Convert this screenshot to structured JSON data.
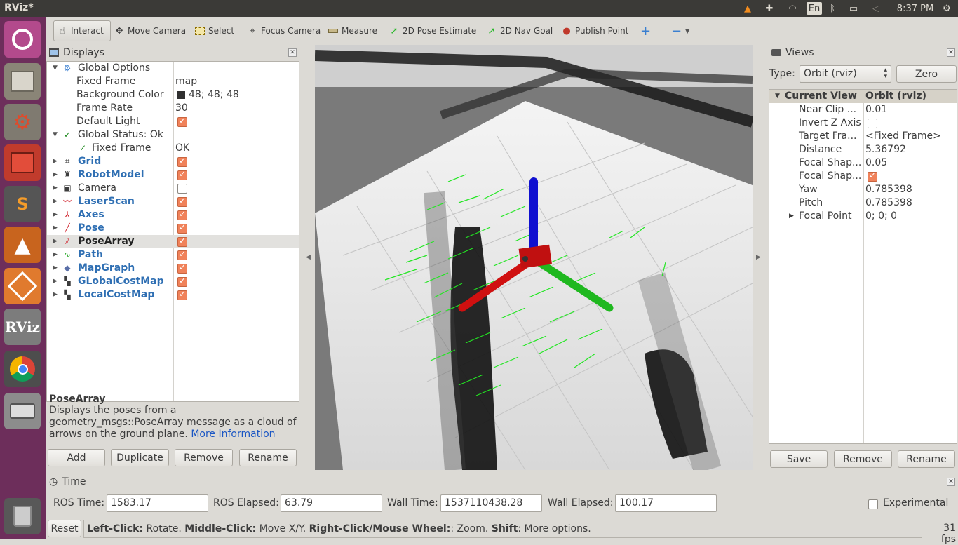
{
  "topbar": {
    "title": "RViz*",
    "keyboard": "En",
    "time": "8:37 PM"
  },
  "toolbar": {
    "tools": [
      {
        "label": "Interact",
        "icon": "hand-icon"
      },
      {
        "label": "Move Camera",
        "icon": "move-icon"
      },
      {
        "label": "Select",
        "icon": "select-icon"
      },
      {
        "label": "Focus Camera",
        "icon": "focus-icon"
      },
      {
        "label": "Measure",
        "icon": "ruler-icon"
      },
      {
        "label": "2D Pose Estimate",
        "icon": "green-arrow-icon"
      },
      {
        "label": "2D Nav Goal",
        "icon": "green-arrow-icon"
      },
      {
        "label": "Publish Point",
        "icon": "pin-icon"
      }
    ],
    "active_tool": "Interact"
  },
  "displays": {
    "header": "Displays",
    "rows": [
      {
        "label": "Global Options",
        "value": ""
      },
      {
        "label": "Fixed Frame",
        "value": "map"
      },
      {
        "label": "Background Color",
        "value": "48; 48; 48"
      },
      {
        "label": "Frame Rate",
        "value": "30"
      },
      {
        "label": "Default Light",
        "value": ""
      },
      {
        "label": "Global Status: Ok",
        "value": ""
      },
      {
        "label": "Fixed Frame",
        "value": "OK"
      },
      {
        "label": "Grid",
        "value": ""
      },
      {
        "label": "RobotModel",
        "value": ""
      },
      {
        "label": "Camera",
        "value": ""
      },
      {
        "label": "LaserScan",
        "value": ""
      },
      {
        "label": "Axes",
        "value": ""
      },
      {
        "label": "Pose",
        "value": ""
      },
      {
        "label": "PoseArray",
        "value": ""
      },
      {
        "label": "Path",
        "value": ""
      },
      {
        "label": "MapGraph",
        "value": ""
      },
      {
        "label": "GLobalCostMap",
        "value": ""
      },
      {
        "label": "LocalCostMap",
        "value": ""
      }
    ],
    "checked": {
      "default_light": true,
      "grid": true,
      "robotmodel": true,
      "camera": false,
      "laserscan": true,
      "axes": true,
      "pose": true,
      "posearray": true,
      "path": true,
      "mapgraph": true,
      "globalcostmap": true,
      "localcostmap": true
    },
    "description_title": "PoseArray",
    "description_text": "Displays the poses from a geometry_msgs::PoseArray message as a cloud of arrows on the ground plane.",
    "description_link": "More Information",
    "buttons": {
      "add": "Add",
      "duplicate": "Duplicate",
      "remove": "Remove",
      "rename": "Rename"
    }
  },
  "views": {
    "header": "Views",
    "type_label": "Type:",
    "type_value": "Orbit (rviz)",
    "zero_button": "Zero",
    "current_view_label": "Current View",
    "current_view_value": "Orbit (rviz)",
    "props": [
      {
        "label": "Near Clip ...",
        "value": "0.01"
      },
      {
        "label": "Invert Z Axis",
        "value": ""
      },
      {
        "label": "Target Fra...",
        "value": "<Fixed Frame>"
      },
      {
        "label": "Distance",
        "value": "5.36792"
      },
      {
        "label": "Focal Shap...",
        "value": "0.05"
      },
      {
        "label": "Focal Shap...",
        "value": ""
      },
      {
        "label": "Yaw",
        "value": "0.785398"
      },
      {
        "label": "Pitch",
        "value": "0.785398"
      },
      {
        "label": "Focal Point",
        "value": "0; 0; 0"
      }
    ],
    "buttons": {
      "save": "Save",
      "remove": "Remove",
      "rename": "Rename"
    }
  },
  "time": {
    "header": "Time",
    "ros_time_label": "ROS Time:",
    "ros_time": "1583.17",
    "ros_elapsed_label": "ROS Elapsed:",
    "ros_elapsed": "63.79",
    "wall_time_label": "Wall Time:",
    "wall_time": "1537110438.28",
    "wall_elapsed_label": "Wall Elapsed:",
    "wall_elapsed": "100.17",
    "experimental_label": "Experimental"
  },
  "status": {
    "reset": "Reset",
    "lc_key": "Left-Click:",
    "lc_txt": " Rotate. ",
    "mc_key": "Middle-Click:",
    "mc_txt": " Move X/Y. ",
    "rc_key": "Right-Click/Mouse Wheel:",
    "rc_txt": ": Zoom. ",
    "sh_key": "Shift",
    "sh_txt": ": More options.",
    "fps": "31 fps"
  },
  "launcher": {
    "rviz_label": "RViz"
  },
  "colors": {
    "launcher_bg": "#6d2e5b",
    "topbar_bg": "#3b3a37",
    "accent_orange": "#f0825a",
    "link_blue": "#2f6fb3"
  }
}
